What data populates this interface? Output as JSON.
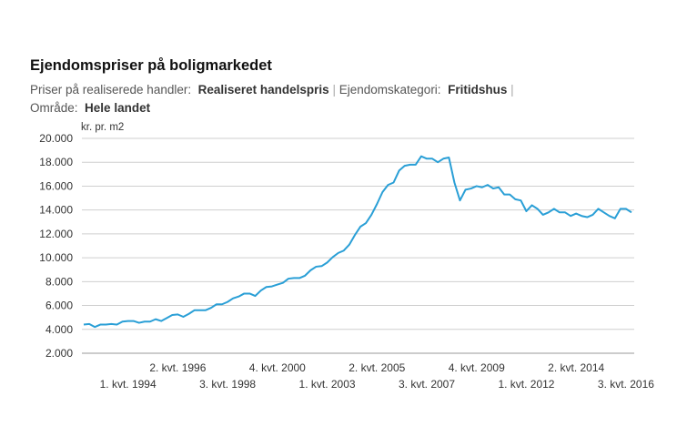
{
  "chart_data": {
    "type": "line",
    "title": "Ejendomspriser på boligmarkedet",
    "filters": {
      "handler_label": "Priser på realiserede handler:",
      "handler_value": "Realiseret handelspris",
      "kategori_label": "Ejendomskategori:",
      "kategori_value": "Fritidshus",
      "omraade_label": "Område:",
      "omraade_value": "Hele landet",
      "separator": "|"
    },
    "ylabel": "kr. pr. m2",
    "ylim": [
      2000,
      20000
    ],
    "yticks": [
      2000,
      4000,
      6000,
      8000,
      10000,
      12000,
      14000,
      16000,
      18000,
      20000
    ],
    "ytick_labels": [
      "2.000",
      "4.000",
      "6.000",
      "8.000",
      "10.000",
      "12.000",
      "14.000",
      "16.000",
      "18.000",
      "20.000"
    ],
    "grid": true,
    "line_color": "#2a9fd6",
    "x_period_start": "1. kvt. 1992",
    "xticks": [
      {
        "label": "1. kvt. 1994",
        "index": 8,
        "row": 2
      },
      {
        "label": "2. kvt. 1996",
        "index": 17,
        "row": 1
      },
      {
        "label": "3. kvt. 1998",
        "index": 26,
        "row": 2
      },
      {
        "label": "4. kvt. 2000",
        "index": 35,
        "row": 1
      },
      {
        "label": "1. kvt. 2003",
        "index": 44,
        "row": 2
      },
      {
        "label": "2. kvt. 2005",
        "index": 53,
        "row": 1
      },
      {
        "label": "3. kvt. 2007",
        "index": 62,
        "row": 2
      },
      {
        "label": "4. kvt. 2009",
        "index": 71,
        "row": 1
      },
      {
        "label": "1. kvt. 2012",
        "index": 80,
        "row": 2
      },
      {
        "label": "2. kvt. 2014",
        "index": 89,
        "row": 1
      },
      {
        "label": "3. kvt. 2016",
        "index": 98,
        "row": 2
      }
    ],
    "series": [
      {
        "values": [
          4400,
          4450,
          4200,
          4400,
          4400,
          4450,
          4400,
          4650,
          4700,
          4700,
          4550,
          4650,
          4650,
          4850,
          4700,
          4950,
          5200,
          5250,
          5050,
          5300,
          5600,
          5600,
          5600,
          5800,
          6100,
          6100,
          6300,
          6600,
          6750,
          7000,
          7000,
          6800,
          7250,
          7550,
          7600,
          7750,
          7900,
          8250,
          8300,
          8300,
          8500,
          8950,
          9250,
          9300,
          9600,
          10050,
          10400,
          10600,
          11100,
          11900,
          12600,
          12900,
          13600,
          14500,
          15500,
          16100,
          16300,
          17300,
          17700,
          17800,
          17800,
          18500,
          18300,
          18300,
          18000,
          18300,
          18400,
          16300,
          14800,
          15700,
          15800,
          16000,
          15900,
          16100,
          15800,
          15900,
          15300,
          15300,
          14900,
          14800,
          13900,
          14400,
          14100,
          13600,
          13800,
          14100,
          13800,
          13800,
          13500,
          13700,
          13500,
          13400,
          13600,
          14100,
          13800,
          13500,
          13300,
          14100,
          14100,
          13800
        ]
      }
    ]
  }
}
